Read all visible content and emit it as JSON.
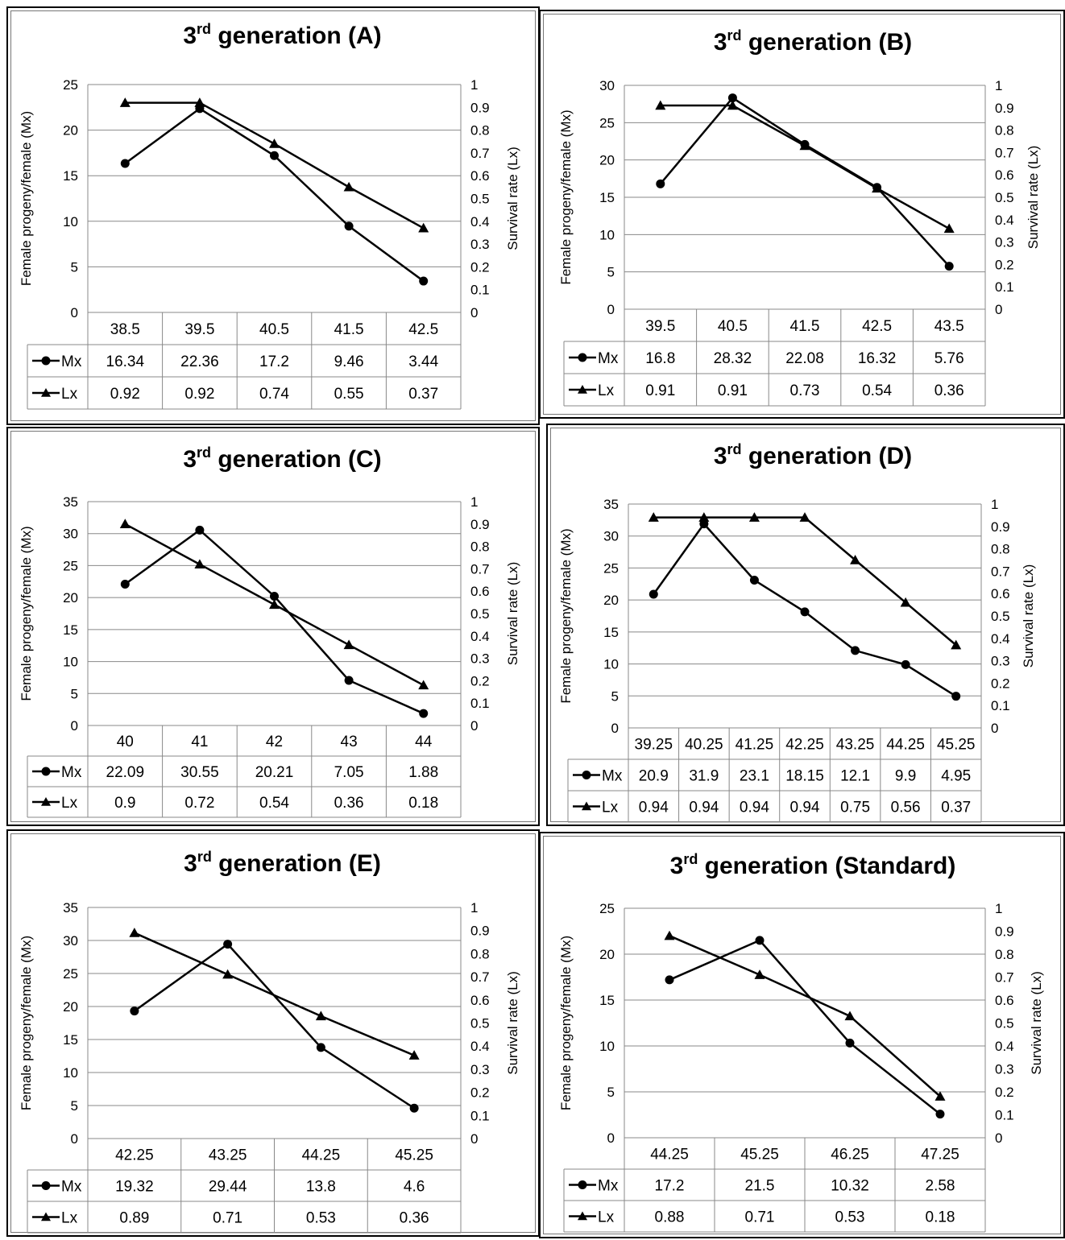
{
  "figure": {
    "line_color": "#000000",
    "grid_color": "#888888"
  },
  "chart_data": [
    {
      "type": "line",
      "title": "3rd generation (A)",
      "title_main": "3",
      "title_sup": "rd",
      "title_rest": " generation (A)",
      "ylabel": "Female progeny/female (Mx)",
      "y2label": "Survival rate (Lx)",
      "ylim": [
        0,
        25
      ],
      "yticks": [
        0,
        5,
        10,
        15,
        20,
        25
      ],
      "y2lim": [
        0,
        1
      ],
      "y2ticks": [
        "0",
        "0.1",
        "0.2",
        "0.3",
        "0.4",
        "0.5",
        "0.6",
        "0.7",
        "0.8",
        "0.9",
        "1"
      ],
      "categories": [
        "38.5",
        "39.5",
        "40.5",
        "41.5",
        "42.5"
      ],
      "series": [
        {
          "name": "Mx",
          "marker": "circle",
          "axis": "left",
          "values": [
            16.34,
            22.36,
            17.2,
            9.46,
            3.44
          ],
          "labels": [
            "16.34",
            "22.36",
            "17.2",
            "9.46",
            "3.44"
          ]
        },
        {
          "name": "Lx",
          "marker": "triangle",
          "axis": "right",
          "values": [
            0.92,
            0.92,
            0.74,
            0.55,
            0.37
          ],
          "labels": [
            "0.92",
            "0.92",
            "0.74",
            "0.55",
            "0.37"
          ]
        }
      ],
      "legend": "data-table",
      "grid": true
    },
    {
      "type": "line",
      "title": "3rd generation (B)",
      "title_main": "3",
      "title_sup": "rd",
      "title_rest": " generation (B)",
      "ylabel": "Female progeny/female (Mx)",
      "y2label": "Survival rate (Lx)",
      "ylim": [
        0,
        30
      ],
      "yticks": [
        0,
        5,
        10,
        15,
        20,
        25,
        30
      ],
      "y2lim": [
        0,
        1
      ],
      "y2ticks": [
        "0",
        "0.1",
        "0.2",
        "0.3",
        "0.4",
        "0.5",
        "0.6",
        "0.7",
        "0.8",
        "0.9",
        "1"
      ],
      "categories": [
        "39.5",
        "40.5",
        "41.5",
        "42.5",
        "43.5"
      ],
      "series": [
        {
          "name": "Mx",
          "marker": "circle",
          "axis": "left",
          "values": [
            16.8,
            28.32,
            22.08,
            16.32,
            5.76
          ],
          "labels": [
            "16.8",
            "28.32",
            "22.08",
            "16.32",
            "5.76"
          ]
        },
        {
          "name": "Lx",
          "marker": "triangle",
          "axis": "right",
          "values": [
            0.91,
            0.91,
            0.73,
            0.54,
            0.36
          ],
          "labels": [
            "0.91",
            "0.91",
            "0.73",
            "0.54",
            "0.36"
          ]
        }
      ],
      "legend": "data-table",
      "grid": true
    },
    {
      "type": "line",
      "title": "3rd generation (C)",
      "title_main": "3",
      "title_sup": "rd",
      "title_rest": " generation (C)",
      "ylabel": "Female progeny/female (Mx)",
      "y2label": "Survival rate (Lx)",
      "ylim": [
        0,
        35
      ],
      "yticks": [
        0,
        5,
        10,
        15,
        20,
        25,
        30,
        35
      ],
      "y2lim": [
        0,
        1
      ],
      "y2ticks": [
        "0",
        "0.1",
        "0.2",
        "0.3",
        "0.4",
        "0.5",
        "0.6",
        "0.7",
        "0.8",
        "0.9",
        "1"
      ],
      "categories": [
        "40",
        "41",
        "42",
        "43",
        "44"
      ],
      "series": [
        {
          "name": "Mx",
          "marker": "circle",
          "axis": "left",
          "values": [
            22.09,
            30.55,
            20.21,
            7.05,
            1.88
          ],
          "labels": [
            "22.09",
            "30.55",
            "20.21",
            "7.05",
            "1.88"
          ]
        },
        {
          "name": "Lx",
          "marker": "triangle",
          "axis": "right",
          "values": [
            0.9,
            0.72,
            0.54,
            0.36,
            0.18
          ],
          "labels": [
            "0.9",
            "0.72",
            "0.54",
            "0.36",
            "0.18"
          ]
        }
      ],
      "legend": "data-table",
      "grid": true
    },
    {
      "type": "line",
      "title": "3rd generation (D)",
      "title_main": "3",
      "title_sup": "rd",
      "title_rest": " generation (D)",
      "ylabel": "Female progeny/female (Mx)",
      "y2label": "Survival rate (Lx)",
      "ylim": [
        0,
        35
      ],
      "yticks": [
        0,
        5,
        10,
        15,
        20,
        25,
        30,
        35
      ],
      "y2lim": [
        0,
        1
      ],
      "y2ticks": [
        "0",
        "0.1",
        "0.2",
        "0.3",
        "0.4",
        "0.5",
        "0.6",
        "0.7",
        "0.8",
        "0.9",
        "1"
      ],
      "categories": [
        "39.25",
        "40.25",
        "41.25",
        "42.25",
        "43.25",
        "44.25",
        "45.25"
      ],
      "series": [
        {
          "name": "Mx",
          "marker": "circle",
          "axis": "left",
          "values": [
            20.9,
            31.9,
            23.1,
            18.15,
            12.1,
            9.9,
            4.95
          ],
          "labels": [
            "20.9",
            "31.9",
            "23.1",
            "18.15",
            "12.1",
            "9.9",
            "4.95"
          ]
        },
        {
          "name": "Lx",
          "marker": "triangle",
          "axis": "right",
          "values": [
            0.94,
            0.94,
            0.94,
            0.94,
            0.75,
            0.56,
            0.37
          ],
          "labels": [
            "0.94",
            "0.94",
            "0.94",
            "0.94",
            "0.75",
            "0.56",
            "0.37"
          ]
        }
      ],
      "legend": "data-table",
      "grid": true
    },
    {
      "type": "line",
      "title": "3rd generation (E)",
      "title_main": "3",
      "title_sup": "rd",
      "title_rest": " generation (E)",
      "ylabel": "Female progeny/female (Mx)",
      "y2label": "Survival rate (Lx)",
      "ylim": [
        0,
        35
      ],
      "yticks": [
        0,
        5,
        10,
        15,
        20,
        25,
        30,
        35
      ],
      "y2lim": [
        0,
        1
      ],
      "y2ticks": [
        "0",
        "0.1",
        "0.2",
        "0.3",
        "0.4",
        "0.5",
        "0.6",
        "0.7",
        "0.8",
        "0.9",
        "1"
      ],
      "categories": [
        "42.25",
        "43.25",
        "44.25",
        "45.25"
      ],
      "series": [
        {
          "name": "Mx",
          "marker": "circle",
          "axis": "left",
          "values": [
            19.32,
            29.44,
            13.8,
            4.6
          ],
          "labels": [
            "19.32",
            "29.44",
            "13.8",
            "4.6"
          ]
        },
        {
          "name": "Lx",
          "marker": "triangle",
          "axis": "right",
          "values": [
            0.89,
            0.71,
            0.53,
            0.36
          ],
          "labels": [
            "0.89",
            "0.71",
            "0.53",
            "0.36"
          ]
        }
      ],
      "legend": "data-table",
      "grid": true
    },
    {
      "type": "line",
      "title": "3rd generation (Standard)",
      "title_main": "3",
      "title_sup": "rd",
      "title_rest": " generation (Standard)",
      "ylabel": "Female progeny/female (Mx)",
      "y2label": "Survival rate (Lx)",
      "ylim": [
        0,
        25
      ],
      "yticks": [
        0,
        5,
        10,
        15,
        20,
        25
      ],
      "y2lim": [
        0,
        1
      ],
      "y2ticks": [
        "0",
        "0.1",
        "0.2",
        "0.3",
        "0.4",
        "0.5",
        "0.6",
        "0.7",
        "0.8",
        "0.9",
        "1"
      ],
      "categories": [
        "44.25",
        "45.25",
        "46.25",
        "47.25"
      ],
      "series": [
        {
          "name": "Mx",
          "marker": "circle",
          "axis": "left",
          "values": [
            17.2,
            21.5,
            10.32,
            2.58
          ],
          "labels": [
            "17.2",
            "21.5",
            "10.32",
            "2.58"
          ]
        },
        {
          "name": "Lx",
          "marker": "triangle",
          "axis": "right",
          "values": [
            0.88,
            0.71,
            0.53,
            0.18
          ],
          "labels": [
            "0.88",
            "0.71",
            "0.53",
            "0.18"
          ]
        }
      ],
      "legend": "data-table",
      "grid": true
    }
  ]
}
